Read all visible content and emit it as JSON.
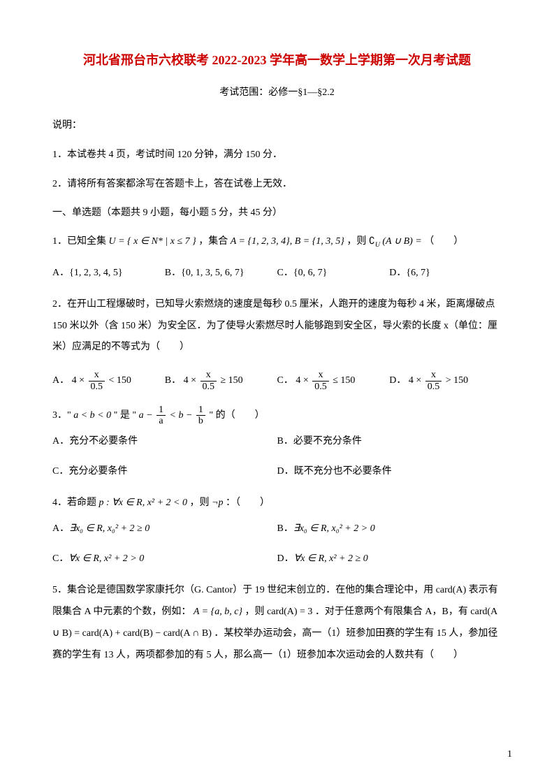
{
  "title": "河北省邢台市六校联考 2022-2023 学年高一数学上学期第一次月考试题",
  "subtitle": "考试范围：必修一§1—§2.2",
  "instructions_label": "说明：",
  "instruction1": "1．本试卷共 4 页，考试时间 120 分钟，满分 150 分．",
  "instruction2": "2．请将所有答案都涂写在答题卡上，答在试卷上无效．",
  "section1_header": "一、单选题（本题共 9 小题，每小题 5 分，共 45 分）",
  "q1": {
    "prefix": "1．已知全集",
    "U_expr": "U = { x ∈ N* | x ≤ 7 }",
    "mid1": "，集合",
    "A_expr": "A = {1, 2, 3, 4}, B = {1, 3, 5}",
    "mid2": "，则",
    "comp_expr": "∁",
    "comp_sub": "U",
    "comp_arg": "(A ∪ B) =",
    "blank": "（　　）",
    "opts": {
      "A_label": "A．",
      "A": "{1, 2, 3, 4, 5}",
      "B_label": "B．",
      "B": "{0, 1, 3, 5, 6, 7}",
      "C_label": "C．",
      "C": "{0, 6, 7}",
      "D_label": "D．",
      "D": "{6, 7}"
    }
  },
  "q2": {
    "text": "2．在开山工程爆破时，已知导火索燃烧的速度是每秒 0.5 厘米，人跑开的速度为每秒 4 米，距离爆破点 150 米以外（含 150 米）为安全区．为了使导火索燃尽时人能够跑到安全区，导火索的长度 x（单位：厘米）应满足的不等式为（　　）",
    "opts": {
      "A_label": "A．",
      "A_before": "4 ×",
      "A_num": "x",
      "A_den": "0.5",
      "A_after": "< 150",
      "B_label": "B．",
      "B_before": "4 ×",
      "B_num": "x",
      "B_den": "0.5",
      "B_after": "≥ 150",
      "C_label": "C．",
      "C_before": "4 ×",
      "C_num": "x",
      "C_den": "0.5",
      "C_after": "≤ 150",
      "D_label": "D．",
      "D_before": "4 ×",
      "D_num": "x",
      "D_den": "0.5",
      "D_after": "> 150"
    }
  },
  "q3": {
    "prefix": "3．\"",
    "cond1": "a < b < 0",
    "mid": "\" 是 \"",
    "cond2_a": "a −",
    "cond2_num1": "1",
    "cond2_den1": "a",
    "cond2_lt": "< b −",
    "cond2_num2": "1",
    "cond2_den2": "b",
    "suffix": "\" 的（　　）",
    "opts": {
      "A": "A．充分不必要条件",
      "B": "B．必要不充分条件",
      "C": "C．充分必要条件",
      "D": "D．既不充分也不必要条件"
    }
  },
  "q4": {
    "prefix": "4．若命题",
    "p_expr": "p : ∀x ∈ R, x² + 2 < 0",
    "mid": "，则",
    "neg": "¬p",
    "suffix": "：（　　）",
    "opts": {
      "A_label": "A．",
      "A": "∃x₀ ∈ R, x₀² + 2 ≥ 0",
      "B_label": "B．",
      "B": "∃x₀ ∈ R, x₀² + 2 > 0",
      "C_label": "C．",
      "C": "∀x ∈ R, x² + 2 > 0",
      "D_label": "D．",
      "D": "∀x ∈ R, x² + 2 ≥ 0"
    }
  },
  "q5": {
    "part1": "5．集合论是德国数学家康托尔（G. Cantor）于 19 世纪末创立的．在他的集合理论中，用",
    "card_A": "card(A)",
    "part2": "表示有限集合 A 中元素的个数，例如：",
    "example_set": "A = {a, b, c}",
    "part3": "，则",
    "example_card": "card(A) = 3",
    "part4": "．对于任意两个有限集合 A，B，有",
    "formula": "card(A ∪ B) = card(A) + card(B) − card(A ∩ B)",
    "part5": "．某校举办运动会，高一（1）班参加田赛的学生有 15 人，参加径赛的学生有 13 人，两项都参加的有 5 人，那么高一（1）班参加本次运动会的人数共有（　　）"
  },
  "page_number": "1",
  "colors": {
    "title_color": "#cc0000",
    "text_color": "#000000",
    "background": "#ffffff"
  }
}
